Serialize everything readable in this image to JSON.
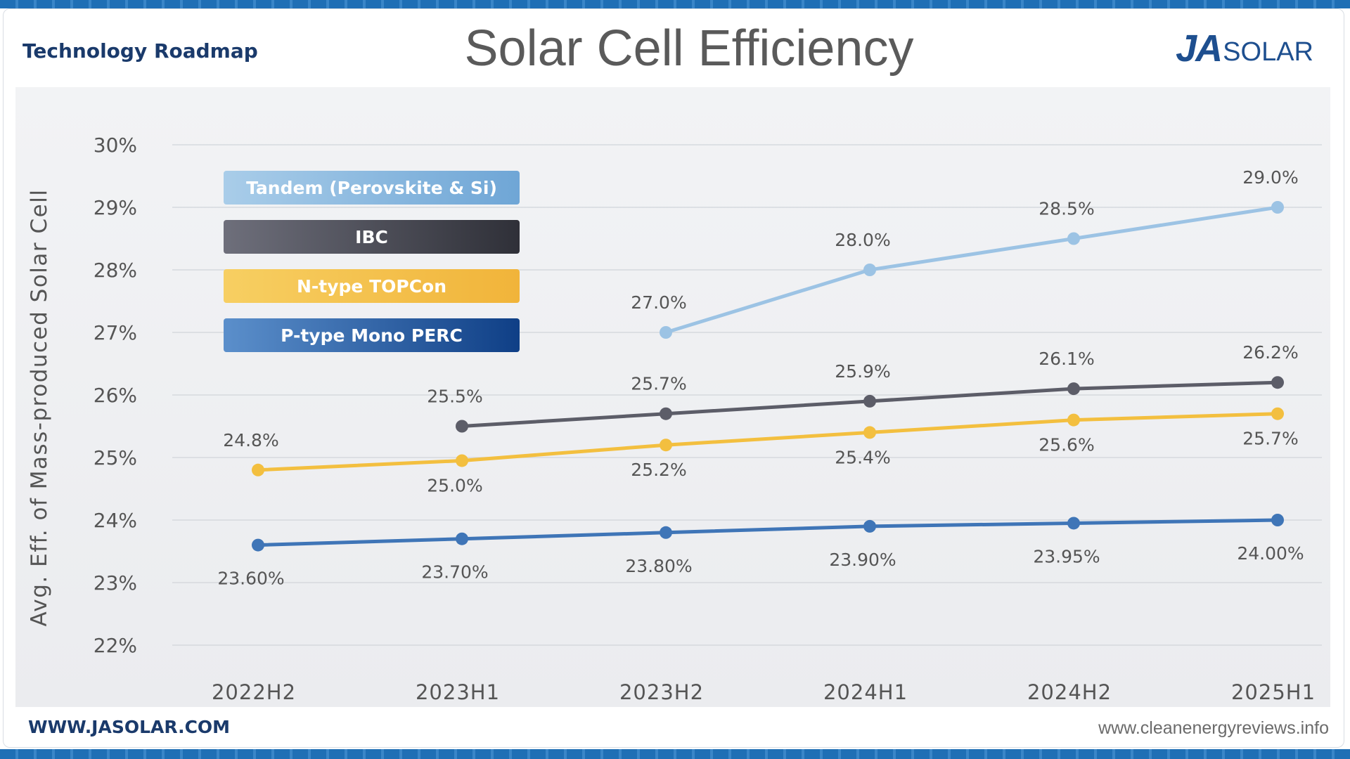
{
  "header": {
    "subtitle": "Technology Roadmap",
    "title": "Solar Cell Efficiency",
    "logo_ja": "JA",
    "logo_solar": "SOLAR"
  },
  "footer": {
    "left_link": "WWW.JASOLAR.COM",
    "right_source": "www.cleanenergyreviews.info"
  },
  "chart_data": {
    "type": "line",
    "title": "Solar Cell Efficiency",
    "ylabel": "Avg. Eff. of Mass-produced Solar Cell",
    "xlabel": "",
    "categories": [
      "2022H2",
      "2023H1",
      "2023H2",
      "2024H1",
      "2024H2",
      "2025H1"
    ],
    "ylim": [
      22,
      30
    ],
    "yticks": [
      22,
      23,
      24,
      25,
      26,
      27,
      28,
      29,
      30
    ],
    "ytick_labels": [
      "22%",
      "23%",
      "24%",
      "25%",
      "26%",
      "27%",
      "28%",
      "29%",
      "30%"
    ],
    "grid": true,
    "legend_position": "top-left",
    "series": [
      {
        "name": "Tandem (Perovskite &  Si)",
        "color": "#9cc3e4",
        "values": [
          null,
          null,
          27.0,
          28.0,
          28.5,
          29.0
        ],
        "labels": [
          null,
          null,
          "27.0%",
          "28.0%",
          "28.5%",
          "29.0%"
        ],
        "label_side": "above"
      },
      {
        "name": "IBC",
        "color": "#5c5d68",
        "values": [
          null,
          25.5,
          25.7,
          25.9,
          26.1,
          26.2
        ],
        "labels": [
          null,
          "25.5%",
          "25.7%",
          "25.9%",
          "26.1%",
          "26.2%"
        ],
        "label_side": "above"
      },
      {
        "name": "N-type TOPCon",
        "color": "#f3bf3f",
        "values": [
          24.8,
          24.95,
          25.2,
          25.4,
          25.6,
          25.7
        ],
        "labels": [
          "24.8%",
          "25.0%",
          "25.2%",
          "25.4%",
          "25.6%",
          "25.7%"
        ],
        "label_side": "below_except_first"
      },
      {
        "name": "P-type Mono PERC",
        "color": "#3f75b7",
        "values": [
          23.6,
          23.7,
          23.8,
          23.9,
          23.95,
          24.0
        ],
        "labels": [
          "23.60%",
          "23.70%",
          "23.80%",
          "23.90%",
          "23.95%",
          "24.00%"
        ],
        "label_side": "below"
      }
    ]
  }
}
